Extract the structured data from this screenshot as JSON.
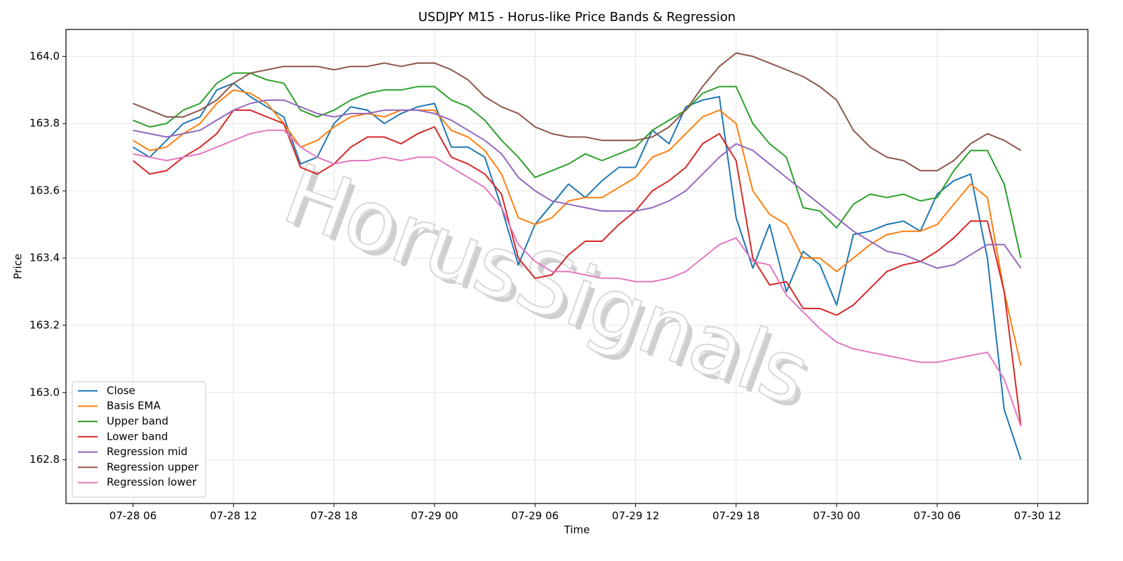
{
  "chart_data": {
    "type": "line",
    "title": "USDJPY M15 - Horus-like Price Bands & Regression",
    "x_label": "Time",
    "y_label": "Price",
    "watermark": "HorusSignals",
    "grid": true,
    "legend": "lower left",
    "x": [
      "07-28 06",
      "07-28 07",
      "07-28 08",
      "07-28 09",
      "07-28 10",
      "07-28 11",
      "07-28 12",
      "07-28 13",
      "07-28 14",
      "07-28 15",
      "07-28 16",
      "07-28 17",
      "07-28 18",
      "07-28 19",
      "07-28 20",
      "07-28 21",
      "07-28 22",
      "07-28 23",
      "07-29 00",
      "07-29 01",
      "07-29 02",
      "07-29 03",
      "07-29 04",
      "07-29 05",
      "07-29 06",
      "07-29 07",
      "07-29 08",
      "07-29 09",
      "07-29 10",
      "07-29 11",
      "07-29 12",
      "07-29 13",
      "07-29 14",
      "07-29 15",
      "07-29 16",
      "07-29 17",
      "07-29 18",
      "07-29 19",
      "07-29 20",
      "07-29 21",
      "07-29 22",
      "07-29 23",
      "07-30 00",
      "07-30 01",
      "07-30 02",
      "07-30 03",
      "07-30 04",
      "07-30 05",
      "07-30 06",
      "07-30 07",
      "07-30 08",
      "07-30 09",
      "07-30 10",
      "07-30 11"
    ],
    "xlim": [
      "07-28 02",
      "07-30 15"
    ],
    "xticks": [
      "07-28 06",
      "07-28 12",
      "07-28 18",
      "07-29 00",
      "07-29 06",
      "07-29 12",
      "07-29 18",
      "07-30 00",
      "07-30 06",
      "07-30 12"
    ],
    "ylim": [
      162.67,
      164.08
    ],
    "yticks": [
      162.8,
      {
        "value": 163.0,
        "label": "163.0"
      },
      163.2,
      163.4,
      163.6,
      163.8,
      {
        "value": 164.0,
        "label": "164.0"
      }
    ],
    "series": [
      {
        "name": "Close",
        "color": "#1f77b4",
        "values": [
          163.73,
          163.7,
          163.75,
          163.8,
          163.82,
          163.9,
          163.92,
          163.88,
          163.85,
          163.82,
          163.68,
          163.7,
          163.8,
          163.85,
          163.84,
          163.8,
          163.83,
          163.85,
          163.86,
          163.73,
          163.73,
          163.7,
          163.55,
          163.38,
          163.5,
          163.56,
          163.62,
          163.58,
          163.63,
          163.67,
          163.67,
          163.78,
          163.74,
          163.85,
          163.87,
          163.88,
          163.52,
          163.37,
          163.5,
          163.3,
          163.42,
          163.38,
          163.26,
          163.47,
          163.48,
          163.5,
          163.51,
          163.48,
          163.59,
          163.63,
          163.65,
          163.4,
          162.95,
          162.8
        ]
      },
      {
        "name": "Basis EMA",
        "color": "#ff7f0e",
        "values": [
          163.75,
          163.72,
          163.73,
          163.77,
          163.8,
          163.86,
          163.9,
          163.89,
          163.86,
          163.8,
          163.73,
          163.75,
          163.79,
          163.82,
          163.83,
          163.82,
          163.84,
          163.84,
          163.84,
          163.78,
          163.76,
          163.72,
          163.65,
          163.52,
          163.5,
          163.52,
          163.57,
          163.58,
          163.58,
          163.61,
          163.64,
          163.7,
          163.72,
          163.77,
          163.82,
          163.84,
          163.8,
          163.6,
          163.53,
          163.5,
          163.4,
          163.4,
          163.36,
          163.4,
          163.44,
          163.47,
          163.48,
          163.48,
          163.5,
          163.56,
          163.62,
          163.58,
          163.3,
          163.08
        ]
      },
      {
        "name": "Upper band",
        "color": "#2ca02c",
        "values": [
          163.81,
          163.79,
          163.8,
          163.84,
          163.86,
          163.92,
          163.95,
          163.95,
          163.93,
          163.92,
          163.84,
          163.82,
          163.84,
          163.87,
          163.89,
          163.9,
          163.9,
          163.91,
          163.91,
          163.87,
          163.85,
          163.81,
          163.75,
          163.7,
          163.64,
          163.66,
          163.68,
          163.71,
          163.69,
          163.71,
          163.73,
          163.78,
          163.81,
          163.84,
          163.89,
          163.91,
          163.91,
          163.8,
          163.74,
          163.7,
          163.55,
          163.54,
          163.49,
          163.56,
          163.59,
          163.58,
          163.59,
          163.57,
          163.58,
          163.66,
          163.72,
          163.72,
          163.62,
          163.4
        ]
      },
      {
        "name": "Lower band",
        "color": "#d62728",
        "values": [
          163.69,
          163.65,
          163.66,
          163.7,
          163.73,
          163.77,
          163.84,
          163.84,
          163.82,
          163.8,
          163.67,
          163.65,
          163.68,
          163.73,
          163.76,
          163.76,
          163.74,
          163.77,
          163.79,
          163.7,
          163.68,
          163.65,
          163.59,
          163.4,
          163.34,
          163.35,
          163.41,
          163.45,
          163.45,
          163.5,
          163.54,
          163.6,
          163.63,
          163.67,
          163.74,
          163.77,
          163.69,
          163.4,
          163.32,
          163.33,
          163.25,
          163.25,
          163.23,
          163.26,
          163.31,
          163.36,
          163.38,
          163.39,
          163.42,
          163.46,
          163.51,
          163.51,
          163.3,
          162.9
        ]
      },
      {
        "name": "Regression mid",
        "color": "#9467bd",
        "values": [
          163.78,
          163.77,
          163.76,
          163.77,
          163.78,
          163.81,
          163.84,
          163.86,
          163.87,
          163.87,
          163.85,
          163.83,
          163.82,
          163.83,
          163.83,
          163.84,
          163.84,
          163.84,
          163.83,
          163.81,
          163.78,
          163.75,
          163.71,
          163.64,
          163.6,
          163.57,
          163.56,
          163.55,
          163.54,
          163.54,
          163.54,
          163.55,
          163.57,
          163.6,
          163.65,
          163.7,
          163.74,
          163.72,
          163.68,
          163.64,
          163.6,
          163.56,
          163.52,
          163.48,
          163.45,
          163.42,
          163.41,
          163.39,
          163.37,
          163.38,
          163.41,
          163.44,
          163.44,
          163.37
        ]
      },
      {
        "name": "Regression upper",
        "color": "#8c564b",
        "values": [
          163.86,
          163.84,
          163.82,
          163.82,
          163.84,
          163.87,
          163.92,
          163.95,
          163.96,
          163.97,
          163.97,
          163.97,
          163.96,
          163.97,
          163.97,
          163.98,
          163.97,
          163.98,
          163.98,
          163.96,
          163.93,
          163.88,
          163.85,
          163.83,
          163.79,
          163.77,
          163.76,
          163.76,
          163.75,
          163.75,
          163.75,
          163.76,
          163.79,
          163.84,
          163.91,
          163.97,
          164.01,
          164.0,
          163.98,
          163.96,
          163.94,
          163.91,
          163.87,
          163.78,
          163.73,
          163.7,
          163.69,
          163.66,
          163.66,
          163.69,
          163.74,
          163.77,
          163.75,
          163.72
        ]
      },
      {
        "name": "Regression lower",
        "color": "#e377c2",
        "values": [
          163.71,
          163.7,
          163.69,
          163.7,
          163.71,
          163.73,
          163.75,
          163.77,
          163.78,
          163.78,
          163.73,
          163.7,
          163.68,
          163.69,
          163.69,
          163.7,
          163.69,
          163.7,
          163.7,
          163.67,
          163.64,
          163.61,
          163.55,
          163.44,
          163.39,
          163.36,
          163.36,
          163.35,
          163.34,
          163.34,
          163.33,
          163.33,
          163.34,
          163.36,
          163.4,
          163.44,
          163.46,
          163.39,
          163.38,
          163.29,
          163.24,
          163.19,
          163.15,
          163.13,
          163.12,
          163.11,
          163.1,
          163.09,
          163.09,
          163.1,
          163.11,
          163.12,
          163.04,
          162.9
        ]
      }
    ]
  }
}
